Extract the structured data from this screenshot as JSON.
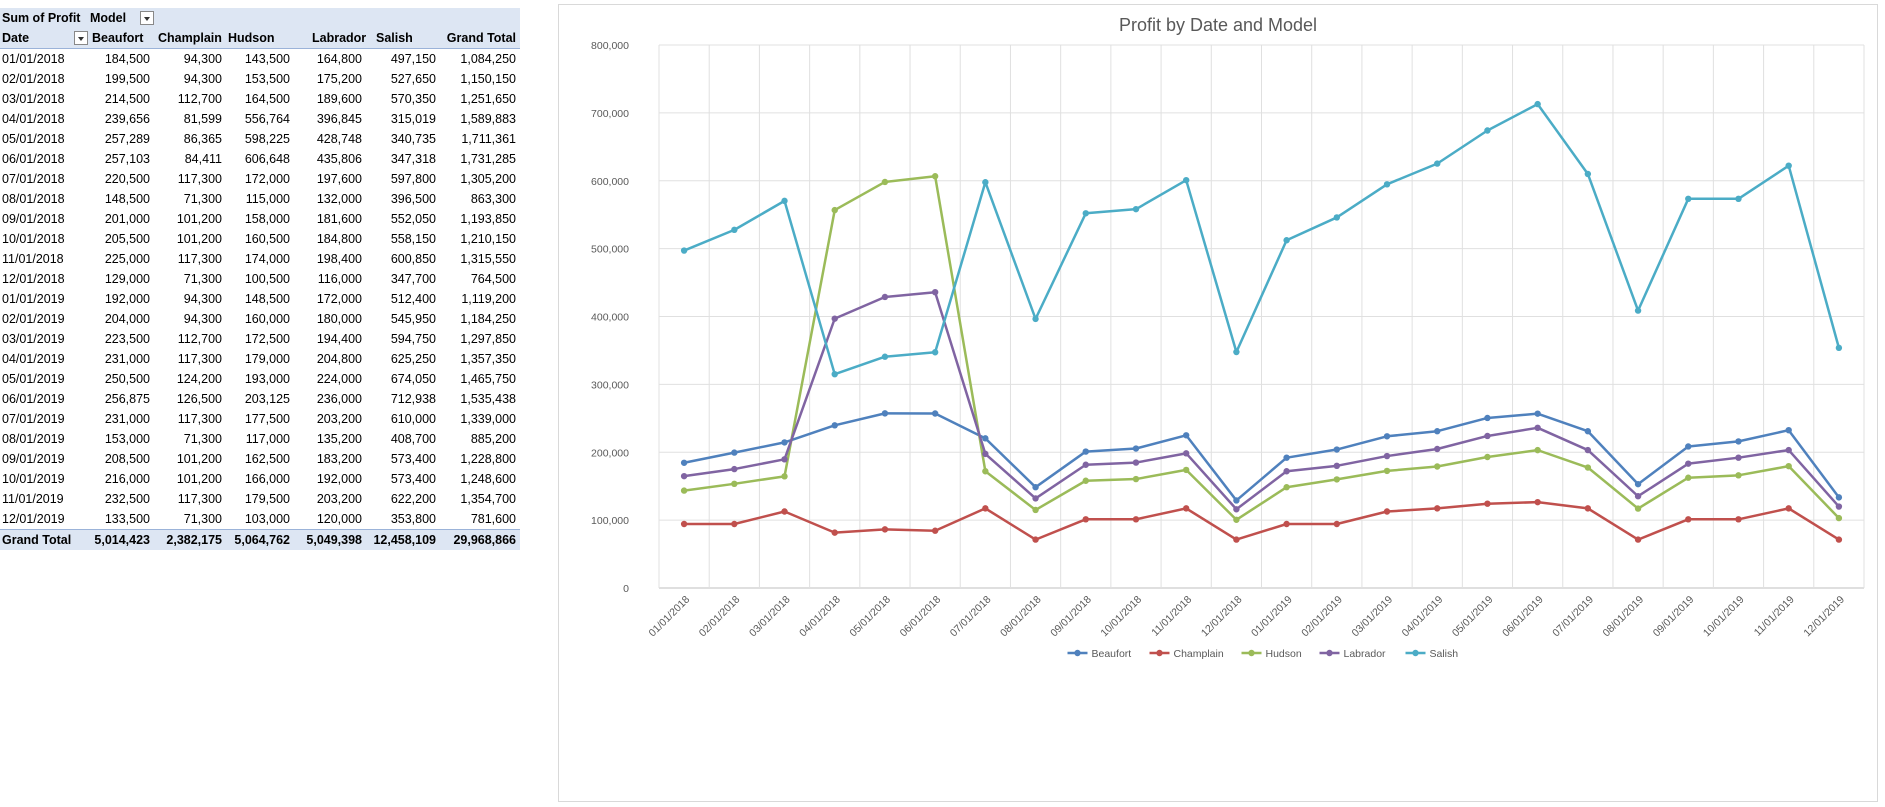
{
  "pivot": {
    "corner_label": "Sum of Profit",
    "column_field_label": "Model",
    "row_field_label": "Date",
    "columns": [
      "Beaufort",
      "Champlain",
      "Hudson",
      "Labrador",
      "Salish",
      "Grand Total"
    ],
    "rows": [
      {
        "date": "01/01/2018",
        "values": [
          "184,500",
          "94,300",
          "143,500",
          "164,800",
          "497,150",
          "1,084,250"
        ]
      },
      {
        "date": "02/01/2018",
        "values": [
          "199,500",
          "94,300",
          "153,500",
          "175,200",
          "527,650",
          "1,150,150"
        ]
      },
      {
        "date": "03/01/2018",
        "values": [
          "214,500",
          "112,700",
          "164,500",
          "189,600",
          "570,350",
          "1,251,650"
        ]
      },
      {
        "date": "04/01/2018",
        "values": [
          "239,656",
          "81,599",
          "556,764",
          "396,845",
          "315,019",
          "1,589,883"
        ]
      },
      {
        "date": "05/01/2018",
        "values": [
          "257,289",
          "86,365",
          "598,225",
          "428,748",
          "340,735",
          "1,711,361"
        ]
      },
      {
        "date": "06/01/2018",
        "values": [
          "257,103",
          "84,411",
          "606,648",
          "435,806",
          "347,318",
          "1,731,285"
        ]
      },
      {
        "date": "07/01/2018",
        "values": [
          "220,500",
          "117,300",
          "172,000",
          "197,600",
          "597,800",
          "1,305,200"
        ]
      },
      {
        "date": "08/01/2018",
        "values": [
          "148,500",
          "71,300",
          "115,000",
          "132,000",
          "396,500",
          "863,300"
        ]
      },
      {
        "date": "09/01/2018",
        "values": [
          "201,000",
          "101,200",
          "158,000",
          "181,600",
          "552,050",
          "1,193,850"
        ]
      },
      {
        "date": "10/01/2018",
        "values": [
          "205,500",
          "101,200",
          "160,500",
          "184,800",
          "558,150",
          "1,210,150"
        ]
      },
      {
        "date": "11/01/2018",
        "values": [
          "225,000",
          "117,300",
          "174,000",
          "198,400",
          "600,850",
          "1,315,550"
        ]
      },
      {
        "date": "12/01/2018",
        "values": [
          "129,000",
          "71,300",
          "100,500",
          "116,000",
          "347,700",
          "764,500"
        ]
      },
      {
        "date": "01/01/2019",
        "values": [
          "192,000",
          "94,300",
          "148,500",
          "172,000",
          "512,400",
          "1,119,200"
        ]
      },
      {
        "date": "02/01/2019",
        "values": [
          "204,000",
          "94,300",
          "160,000",
          "180,000",
          "545,950",
          "1,184,250"
        ]
      },
      {
        "date": "03/01/2019",
        "values": [
          "223,500",
          "112,700",
          "172,500",
          "194,400",
          "594,750",
          "1,297,850"
        ]
      },
      {
        "date": "04/01/2019",
        "values": [
          "231,000",
          "117,300",
          "179,000",
          "204,800",
          "625,250",
          "1,357,350"
        ]
      },
      {
        "date": "05/01/2019",
        "values": [
          "250,500",
          "124,200",
          "193,000",
          "224,000",
          "674,050",
          "1,465,750"
        ]
      },
      {
        "date": "06/01/2019",
        "values": [
          "256,875",
          "126,500",
          "203,125",
          "236,000",
          "712,938",
          "1,535,438"
        ]
      },
      {
        "date": "07/01/2019",
        "values": [
          "231,000",
          "117,300",
          "177,500",
          "203,200",
          "610,000",
          "1,339,000"
        ]
      },
      {
        "date": "08/01/2019",
        "values": [
          "153,000",
          "71,300",
          "117,000",
          "135,200",
          "408,700",
          "885,200"
        ]
      },
      {
        "date": "09/01/2019",
        "values": [
          "208,500",
          "101,200",
          "162,500",
          "183,200",
          "573,400",
          "1,228,800"
        ]
      },
      {
        "date": "10/01/2019",
        "values": [
          "216,000",
          "101,200",
          "166,000",
          "192,000",
          "573,400",
          "1,248,600"
        ]
      },
      {
        "date": "11/01/2019",
        "values": [
          "232,500",
          "117,300",
          "179,500",
          "203,200",
          "622,200",
          "1,354,700"
        ]
      },
      {
        "date": "12/01/2019",
        "values": [
          "133,500",
          "71,300",
          "103,000",
          "120,000",
          "353,800",
          "781,600"
        ]
      }
    ],
    "total": {
      "label": "Grand Total",
      "values": [
        "5,014,423",
        "2,382,175",
        "5,064,762",
        "5,049,398",
        "12,458,109",
        "29,968,866"
      ]
    }
  },
  "chart_data": {
    "type": "line",
    "title": "Profit by Date and Model",
    "xlabel": "",
    "ylabel": "",
    "ylim": [
      0,
      800000
    ],
    "yticks": [
      "0",
      "100,000",
      "200,000",
      "300,000",
      "400,000",
      "500,000",
      "600,000",
      "700,000",
      "800,000"
    ],
    "ytick_values": [
      0,
      100000,
      200000,
      300000,
      400000,
      500000,
      600000,
      700000,
      800000
    ],
    "grid": true,
    "legend_position": "bottom",
    "categories": [
      "01/01/2018",
      "02/01/2018",
      "03/01/2018",
      "04/01/2018",
      "05/01/2018",
      "06/01/2018",
      "07/01/2018",
      "08/01/2018",
      "09/01/2018",
      "10/01/2018",
      "11/01/2018",
      "12/01/2018",
      "01/01/2019",
      "02/01/2019",
      "03/01/2019",
      "04/01/2019",
      "05/01/2019",
      "06/01/2019",
      "07/01/2019",
      "08/01/2019",
      "09/01/2019",
      "10/01/2019",
      "11/01/2019",
      "12/01/2019"
    ],
    "series": [
      {
        "name": "Beaufort",
        "color": "#4f81bd",
        "values": [
          184500,
          199500,
          214500,
          239656,
          257289,
          257103,
          220500,
          148500,
          201000,
          205500,
          225000,
          129000,
          192000,
          204000,
          223500,
          231000,
          250500,
          256875,
          231000,
          153000,
          208500,
          216000,
          232500,
          133500
        ]
      },
      {
        "name": "Champlain",
        "color": "#c0504d",
        "values": [
          94300,
          94300,
          112700,
          81599,
          86365,
          84411,
          117300,
          71300,
          101200,
          101200,
          117300,
          71300,
          94300,
          94300,
          112700,
          117300,
          124200,
          126500,
          117300,
          71300,
          101200,
          101200,
          117300,
          71300
        ]
      },
      {
        "name": "Hudson",
        "color": "#9bbb59",
        "values": [
          143500,
          153500,
          164500,
          556764,
          598225,
          606648,
          172000,
          115000,
          158000,
          160500,
          174000,
          100500,
          148500,
          160000,
          172500,
          179000,
          193000,
          203125,
          177500,
          117000,
          162500,
          166000,
          179500,
          103000
        ]
      },
      {
        "name": "Labrador",
        "color": "#8064a2",
        "values": [
          164800,
          175200,
          189600,
          396845,
          428748,
          435806,
          197600,
          132000,
          181600,
          184800,
          198400,
          116000,
          172000,
          180000,
          194400,
          204800,
          224000,
          236000,
          203200,
          135200,
          183200,
          192000,
          203200,
          120000
        ]
      },
      {
        "name": "Salish",
        "color": "#4bacc6",
        "values": [
          497150,
          527650,
          570350,
          315019,
          340735,
          347318,
          597800,
          396500,
          552050,
          558150,
          600850,
          347700,
          512400,
          545950,
          594750,
          625250,
          674050,
          712938,
          610000,
          408700,
          573400,
          573400,
          622200,
          353800
        ]
      }
    ]
  }
}
